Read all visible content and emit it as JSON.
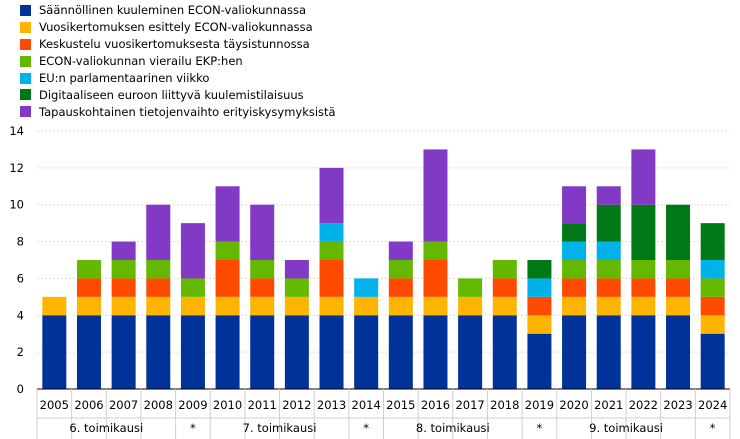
{
  "chart_data": {
    "type": "bar",
    "stacked": true,
    "ylim": [
      0,
      14
    ],
    "yticks": [
      0,
      2,
      4,
      6,
      8,
      10,
      12,
      14
    ],
    "categories": [
      "2005",
      "2006",
      "2007",
      "2008",
      "2009",
      "2010",
      "2011",
      "2012",
      "2013",
      "2014",
      "2015",
      "2016",
      "2017",
      "2018",
      "2019",
      "2020",
      "2021",
      "2022",
      "2023",
      "2024"
    ],
    "series": [
      {
        "name": "Säännöllinen kuuleminen ECON-valiokunnassa",
        "color": "#003299",
        "values": [
          4,
          4,
          4,
          4,
          4,
          4,
          4,
          4,
          4,
          4,
          4,
          4,
          4,
          4,
          3,
          4,
          4,
          4,
          4,
          3
        ]
      },
      {
        "name": "Vuosikertomuksen esittely ECON-valiokunnassa",
        "color": "#ffb400",
        "values": [
          1,
          1,
          1,
          1,
          1,
          1,
          1,
          1,
          1,
          1,
          1,
          1,
          1,
          1,
          1,
          1,
          1,
          1,
          1,
          1
        ]
      },
      {
        "name": "Keskustelu vuosikertomuksesta täysistunnossa",
        "color": "#ff4b00",
        "values": [
          0,
          1,
          1,
          1,
          0,
          2,
          1,
          0,
          2,
          0,
          1,
          2,
          0,
          1,
          1,
          1,
          1,
          1,
          1,
          1
        ]
      },
      {
        "name": "ECON-valiokunnan vierailu EKP:hen",
        "color": "#65b800",
        "values": [
          0,
          1,
          1,
          1,
          1,
          1,
          1,
          1,
          1,
          0,
          1,
          1,
          1,
          1,
          0,
          1,
          1,
          1,
          1,
          1
        ]
      },
      {
        "name": "EU:n parlamentaarinen viikko",
        "color": "#00b1ea",
        "values": [
          0,
          0,
          0,
          0,
          0,
          0,
          0,
          0,
          1,
          1,
          0,
          0,
          0,
          0,
          1,
          1,
          1,
          0,
          0,
          1
        ]
      },
      {
        "name": "Digitaaliseen euroon liittyvä kuulemistilaisuus",
        "color": "#007816",
        "values": [
          0,
          0,
          0,
          0,
          0,
          0,
          0,
          0,
          0,
          0,
          0,
          0,
          0,
          0,
          1,
          1,
          2,
          3,
          3,
          2
        ]
      },
      {
        "name": "Tapauskohtainen tietojenvaihto erityiskysymyksistä",
        "color": "#8139c6",
        "values": [
          0,
          0,
          1,
          3,
          3,
          3,
          3,
          1,
          3,
          0,
          1,
          5,
          0,
          0,
          0,
          2,
          1,
          3,
          0,
          0
        ]
      }
    ],
    "groups": [
      {
        "label": "6. toimikausi",
        "start": 0,
        "end": 3
      },
      {
        "label": "*",
        "start": 4,
        "end": 4
      },
      {
        "label": "7. toimikausi",
        "start": 5,
        "end": 8
      },
      {
        "label": "*",
        "start": 9,
        "end": 9
      },
      {
        "label": "8. toimikausi",
        "start": 10,
        "end": 13
      },
      {
        "label": "*",
        "start": 14,
        "end": 14
      },
      {
        "label": "9. toimikausi",
        "start": 15,
        "end": 18
      },
      {
        "label": "*",
        "start": 19,
        "end": 19
      }
    ],
    "legend_position": "top-left",
    "grid": true
  }
}
